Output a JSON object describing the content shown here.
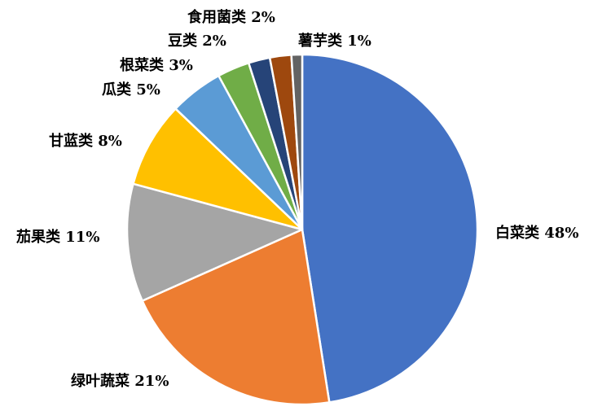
{
  "chart_data": {
    "type": "pie",
    "title": "",
    "slices": [
      {
        "name": "白菜类",
        "value": 48,
        "label": "白菜类 48%",
        "color": "#4472C4"
      },
      {
        "name": "绿叶蔬菜",
        "value": 21,
        "label": "绿叶蔬菜 21%",
        "color": "#ED7D31"
      },
      {
        "name": "茄果类",
        "value": 11,
        "label": "茄果类 11%",
        "color": "#A5A5A5"
      },
      {
        "name": "甘蓝类",
        "value": 8,
        "label": "甘蓝类 8%",
        "color": "#FFC000"
      },
      {
        "name": "瓜类",
        "value": 5,
        "label": "瓜类 5%",
        "color": "#5B9BD5"
      },
      {
        "name": "根菜类",
        "value": 3,
        "label": "根菜类 3%",
        "color": "#70AD47"
      },
      {
        "name": "豆类",
        "value": 2,
        "label": "豆类 2%",
        "color": "#264478"
      },
      {
        "name": "食用菌类",
        "value": 2,
        "label": "食用菌类 2%",
        "color": "#9E480E"
      },
      {
        "name": "薯芋类",
        "value": 1,
        "label": "薯芋类 1%",
        "color": "#636363"
      }
    ],
    "legend": "none"
  }
}
